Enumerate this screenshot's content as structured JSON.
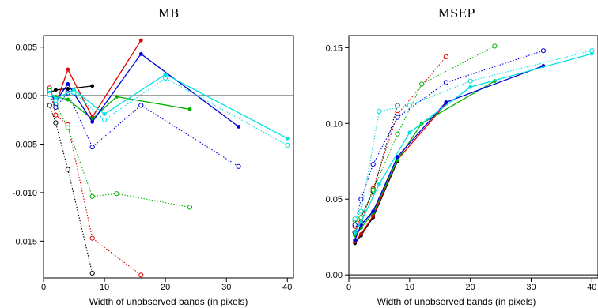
{
  "chart_data": [
    {
      "type": "line",
      "title": "MB",
      "xlabel": "Width of unobserved bands (in pixels)",
      "ylabel": "",
      "xlim": [
        0,
        41
      ],
      "ylim": [
        -0.0188,
        0.0062
      ],
      "xticks": [
        0,
        10,
        20,
        30,
        40
      ],
      "xtick_labels": [
        "0",
        "10",
        "20",
        "30",
        "40"
      ],
      "yticks": [
        -0.015,
        -0.01,
        -0.005,
        0.0,
        0.005
      ],
      "ytick_labels": [
        "-0.015",
        "-0.010",
        "-0.005",
        "0.000",
        "0.005"
      ],
      "reference_line": 0,
      "grid": false,
      "series": [
        {
          "color": "#000000",
          "style": "solid",
          "marker": "filled",
          "x": [
            1,
            2,
            4,
            8
          ],
          "y": [
            0.0003,
            0.0006,
            0.0007,
            0.001
          ]
        },
        {
          "color": "#000000",
          "style": "dotted",
          "marker": "open",
          "x": [
            1,
            2,
            4,
            8
          ],
          "y": [
            -0.001,
            -0.0028,
            -0.0076,
            -0.0183
          ]
        },
        {
          "color": "#dd0000",
          "style": "solid",
          "marker": "filled",
          "x": [
            1,
            2,
            4,
            8,
            16
          ],
          "y": [
            0.0007,
            -0.0009,
            0.0027,
            -0.0022,
            0.0057
          ]
        },
        {
          "color": "#dd0000",
          "style": "dotted",
          "marker": "open",
          "x": [
            1,
            2,
            4,
            8,
            16
          ],
          "y": [
            0.0008,
            -0.002,
            -0.003,
            -0.0147,
            -0.0185
          ]
        },
        {
          "color": "#00b000",
          "style": "solid",
          "marker": "filled",
          "x": [
            1,
            2,
            4,
            8,
            12,
            24
          ],
          "y": [
            0.0002,
            -0.0001,
            -0.0004,
            -0.0024,
            -0.0001,
            -0.0014
          ]
        },
        {
          "color": "#00b000",
          "style": "dotted",
          "marker": "open",
          "x": [
            1,
            2,
            4,
            8,
            12,
            24
          ],
          "y": [
            0.0005,
            -0.0009,
            -0.0033,
            -0.0104,
            -0.0101,
            -0.0115
          ]
        },
        {
          "color": "#0000dd",
          "style": "solid",
          "marker": "filled",
          "x": [
            1,
            2,
            4,
            8,
            16,
            32
          ],
          "y": [
            0.0003,
            -0.0006,
            0.0012,
            -0.0027,
            0.0043,
            -0.0032
          ]
        },
        {
          "color": "#0000dd",
          "style": "dotted",
          "marker": "open",
          "x": [
            1,
            2,
            4,
            8,
            16,
            32
          ],
          "y": [
            0.0002,
            -0.0012,
            0.0003,
            -0.0053,
            -0.001,
            -0.0073
          ]
        },
        {
          "color": "#00e0e0",
          "style": "solid",
          "marker": "filled",
          "x": [
            1,
            2,
            5,
            10,
            20,
            40
          ],
          "y": [
            0.0003,
            -0.0003,
            0.0006,
            -0.0019,
            0.0022,
            -0.0044
          ]
        },
        {
          "color": "#00e0e0",
          "style": "dotted",
          "marker": "open",
          "x": [
            1,
            2,
            5,
            10,
            20,
            40
          ],
          "y": [
            0.0001,
            -0.0005,
            0.0003,
            -0.0025,
            0.0018,
            -0.0051
          ]
        }
      ]
    },
    {
      "type": "line",
      "title": "MSEP",
      "xlabel": "Width of unobserved bands (in pixels)",
      "ylabel": "",
      "xlim": [
        0,
        41
      ],
      "ylim": [
        -0.002,
        0.158
      ],
      "xticks": [
        0,
        10,
        20,
        30,
        40
      ],
      "xtick_labels": [
        "0",
        "10",
        "20",
        "30",
        "40"
      ],
      "yticks": [
        0.0,
        0.05,
        0.1,
        0.15
      ],
      "ytick_labels": [
        "0.00",
        "0.05",
        "0.10",
        "0.15"
      ],
      "reference_line": 0,
      "grid": false,
      "series": [
        {
          "color": "#000000",
          "style": "solid",
          "marker": "filled",
          "x": [
            1,
            2,
            4,
            8
          ],
          "y": [
            0.021,
            0.026,
            0.038,
            0.075
          ]
        },
        {
          "color": "#000000",
          "style": "dotted",
          "marker": "open",
          "x": [
            1,
            2,
            4,
            8
          ],
          "y": [
            0.028,
            0.038,
            0.055,
            0.112
          ]
        },
        {
          "color": "#dd0000",
          "style": "solid",
          "marker": "filled",
          "x": [
            1,
            2,
            4,
            8,
            16
          ],
          "y": [
            0.022,
            0.027,
            0.039,
            0.076,
            0.113
          ]
        },
        {
          "color": "#dd0000",
          "style": "dotted",
          "marker": "open",
          "x": [
            1,
            2,
            4,
            8,
            16
          ],
          "y": [
            0.032,
            0.035,
            0.057,
            0.106,
            0.144
          ]
        },
        {
          "color": "#00b000",
          "style": "solid",
          "marker": "filled",
          "x": [
            1,
            2,
            4,
            8,
            12,
            24
          ],
          "y": [
            0.026,
            0.031,
            0.041,
            0.076,
            0.1,
            0.128
          ]
        },
        {
          "color": "#00b000",
          "style": "dotted",
          "marker": "open",
          "x": [
            1,
            2,
            4,
            8,
            12,
            24
          ],
          "y": [
            0.036,
            0.038,
            0.056,
            0.093,
            0.126,
            0.151
          ]
        },
        {
          "color": "#0000dd",
          "style": "solid",
          "marker": "filled",
          "x": [
            1,
            2,
            4,
            8,
            16,
            32
          ],
          "y": [
            0.023,
            0.033,
            0.042,
            0.078,
            0.114,
            0.138
          ]
        },
        {
          "color": "#0000dd",
          "style": "dotted",
          "marker": "open",
          "x": [
            1,
            2,
            4,
            8,
            16,
            32
          ],
          "y": [
            0.033,
            0.05,
            0.073,
            0.104,
            0.127,
            0.148
          ]
        },
        {
          "color": "#00e0e0",
          "style": "solid",
          "marker": "filled",
          "x": [
            1,
            2,
            5,
            10,
            20,
            40
          ],
          "y": [
            0.028,
            0.035,
            0.06,
            0.094,
            0.124,
            0.146
          ]
        },
        {
          "color": "#00e0e0",
          "style": "dotted",
          "marker": "open",
          "x": [
            1,
            2,
            5,
            10,
            20,
            40
          ],
          "y": [
            0.037,
            0.042,
            0.108,
            0.112,
            0.128,
            0.148
          ]
        }
      ]
    }
  ]
}
